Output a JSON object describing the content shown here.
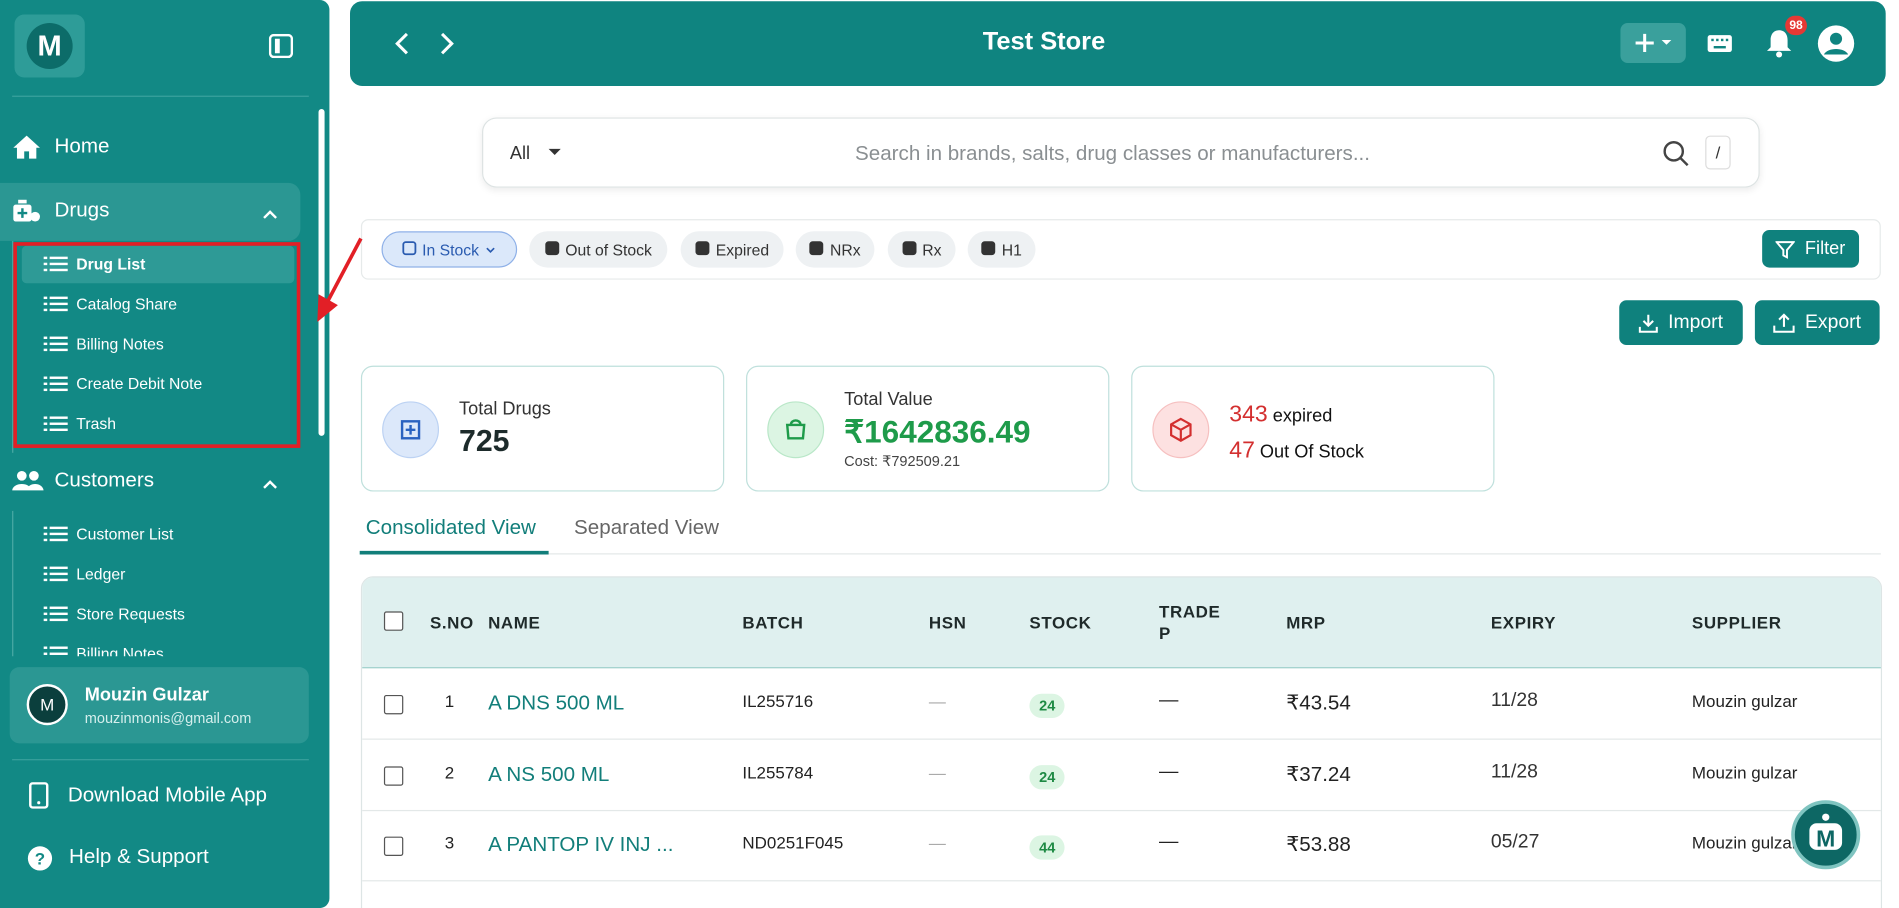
{
  "sidebar": {
    "nav": [
      {
        "label": "Home"
      },
      {
        "label": "Drugs",
        "children": [
          "Drug List",
          "Catalog Share",
          "Billing Notes",
          "Create Debit Note",
          "Trash"
        ]
      },
      {
        "label": "Customers",
        "children": [
          "Customer List",
          "Ledger",
          "Store Requests",
          "Billing Notes"
        ]
      }
    ],
    "user": {
      "initial": "M",
      "name": "Mouzin Gulzar",
      "email": "mouzinmonis@gmail.com"
    },
    "footer": [
      "Download Mobile App",
      "Help & Support"
    ]
  },
  "header": {
    "title": "Test Store",
    "notifications": "98"
  },
  "search": {
    "scope": "All",
    "placeholder": "Search in brands, salts, drug classes or manufacturers...",
    "shortcut": "/"
  },
  "chips": [
    "In Stock",
    "Out of Stock",
    "Expired",
    "NRx",
    "Rx",
    "H1"
  ],
  "filter": "Filter",
  "actions": [
    "Import",
    "Export"
  ],
  "stats": {
    "total_drugs": {
      "label": "Total Drugs",
      "value": "725"
    },
    "total_value": {
      "label": "Total Value",
      "value": "₹1642836.49",
      "cost": "Cost: ₹792509.21"
    },
    "expired": {
      "count": "343",
      "label": "expired"
    },
    "out_of_stock": {
      "count": "47",
      "label": "Out Of Stock"
    }
  },
  "tabs": [
    "Consolidated View",
    "Separated View"
  ],
  "table": {
    "columns": [
      "S.NO",
      "NAME",
      "BATCH",
      "HSN",
      "STOCK",
      "TRADE P",
      "MRP",
      "EXPIRY",
      "SUPPLIER"
    ],
    "rows": [
      [
        "1",
        "A DNS 500 ML",
        "IL255716",
        "—",
        "24",
        "—",
        "₹43.54",
        "11/28",
        "Mouzin gulzar"
      ],
      [
        "2",
        "A NS 500 ML",
        "IL255784",
        "—",
        "24",
        "—",
        "₹37.24",
        "11/28",
        "Mouzin gulzar"
      ],
      [
        "3",
        "A PANTOP IV INJ ...",
        "ND0251F045",
        "—",
        "44",
        "—",
        "₹53.88",
        "05/27",
        "Mouzin gulzar"
      ]
    ]
  }
}
